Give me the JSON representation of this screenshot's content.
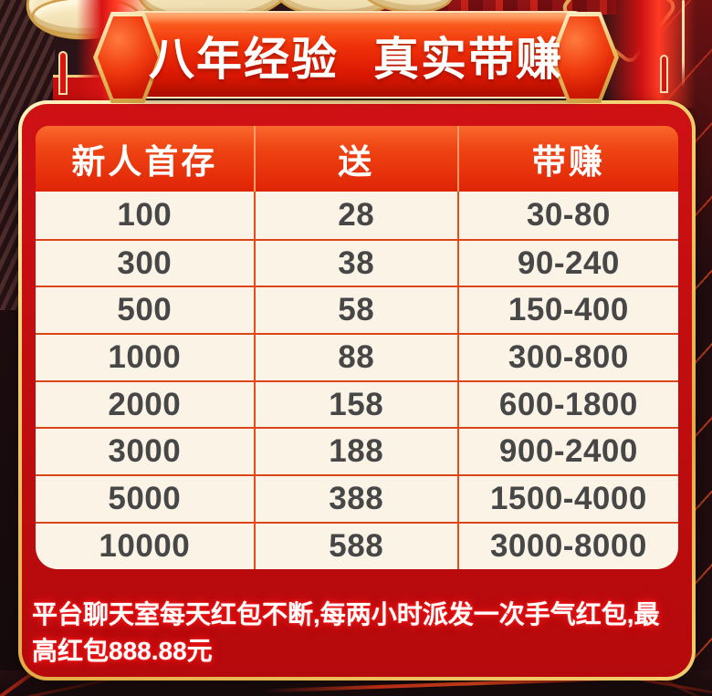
{
  "banner": {
    "title": "八年经验 真实带赚"
  },
  "table": {
    "headers": [
      "新人首存",
      "送",
      "带赚"
    ],
    "rows": [
      [
        "100",
        "28",
        "30-80"
      ],
      [
        "300",
        "38",
        "90-240"
      ],
      [
        "500",
        "58",
        "150-400"
      ],
      [
        "1000",
        "88",
        "300-800"
      ],
      [
        "2000",
        "158",
        "600-1800"
      ],
      [
        "3000",
        "188",
        "900-2400"
      ],
      [
        "5000",
        "388",
        "1500-4000"
      ],
      [
        "10000",
        "588",
        "3000-8000"
      ]
    ]
  },
  "note": "平台聊天室每天红包不断,每两小时派发一次手气红包,最高红包888.88元",
  "colors": {
    "background_dark": "#2a1316",
    "panel_red": "#c10d10",
    "gold_border": "#f0c45f",
    "banner_red": "#e82408",
    "header_orange": "#ee3c0f",
    "table_cream": "#faf3e6",
    "row_line": "#dc4519",
    "cell_text": "#474747",
    "note_glow": "#ff1f1f"
  }
}
